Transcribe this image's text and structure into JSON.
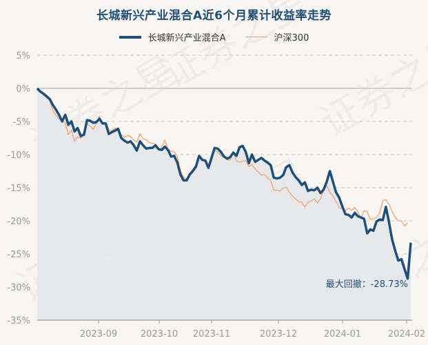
{
  "chart_data": {
    "type": "line",
    "title": "长城新兴产业混合A近6个月累计收益率走势",
    "xlabel": "",
    "ylabel": "",
    "ylim": [
      -35,
      5
    ],
    "yticks": [
      "5%",
      "0%",
      "-5%",
      "-10%",
      "-15%",
      "-20%",
      "-25%",
      "-30%",
      "-35%"
    ],
    "ytick_values": [
      5,
      0,
      -5,
      -10,
      -15,
      -20,
      -25,
      -30,
      -35
    ],
    "xticks": [
      "2023-09",
      "2023-10",
      "2023-11",
      "2023-12",
      "2024-01",
      "2024-02"
    ],
    "grid": true,
    "legend_position": "top",
    "annotation": "最大回撤：-28.73%",
    "series": [
      {
        "name": "长城新兴产业混合A",
        "color": "#1f4e79",
        "values": [
          0.0,
          -0.5,
          -0.8,
          -1.2,
          -1.6,
          -2.5,
          -3.2,
          -4.0,
          -5.0,
          -4.0,
          -5.5,
          -5.0,
          -6.5,
          -6.0,
          -7.2,
          -7.0,
          -4.8,
          -4.9,
          -5.2,
          -5.1,
          -4.6,
          -5.3,
          -5.3,
          -6.9,
          -6.6,
          -6.4,
          -6.1,
          -7.5,
          -7.9,
          -8.2,
          -8.0,
          -8.6,
          -9.4,
          -8.0,
          -8.6,
          -9.1,
          -9.0,
          -9.0,
          -8.6,
          -9.2,
          -9.3,
          -8.8,
          -9.3,
          -10.3,
          -10.2,
          -11.2,
          -13.0,
          -13.9,
          -13.9,
          -13.0,
          -12.5,
          -11.8,
          -10.2,
          -10.8,
          -10.9,
          -12.0,
          -10.5,
          -9.0,
          -9.1,
          -9.6,
          -10.3,
          -10.6,
          -10.4,
          -9.7,
          -10.2,
          -8.9,
          -8.7,
          -9.6,
          -11.3,
          -10.0,
          -11.1,
          -10.8,
          -10.5,
          -10.9,
          -11.2,
          -11.6,
          -13.5,
          -13.6,
          -13.5,
          -13.1,
          -11.9,
          -11.6,
          -12.7,
          -13.4,
          -13.9,
          -14.6,
          -14.2,
          -15.5,
          -15.3,
          -15.4,
          -15.0,
          -15.8,
          -15.3,
          -14.1,
          -12.5,
          -14.1,
          -15.7,
          -16.5,
          -17.8,
          -19.0,
          -19.1,
          -19.5,
          -18.8,
          -19.3,
          -19.5,
          -19.7,
          -21.9,
          -21.3,
          -21.5,
          -20.1,
          -19.8,
          -19.9,
          -17.9,
          -20.2,
          -22.8,
          -24.5,
          -26.0,
          -25.8,
          -27.3,
          -28.73,
          -23.3
        ]
      },
      {
        "name": "沪深300",
        "color": "#f0a46a",
        "values": [
          0.0,
          -0.6,
          -1.0,
          -1.4,
          -1.9,
          -3.3,
          -4.1,
          -4.6,
          -4.8,
          -5.3,
          -7.0,
          -6.3,
          -8.0,
          -7.3,
          -7.5,
          -7.0,
          -5.4,
          -5.7,
          -6.2,
          -5.3,
          -4.2,
          -5.2,
          -5.2,
          -6.3,
          -6.4,
          -6.0,
          -6.5,
          -7.0,
          -7.4,
          -7.1,
          -7.3,
          -7.8,
          -8.1,
          -6.9,
          -7.6,
          -7.8,
          -8.2,
          -8.3,
          -8.4,
          -9.2,
          -8.9,
          -7.8,
          -9.2,
          -9.5,
          -9.6,
          -10.3,
          -12.5,
          -13.4,
          -13.7,
          -12.8,
          -12.2,
          -11.6,
          -10.5,
          -10.6,
          -11.1,
          -11.8,
          -10.4,
          -9.4,
          -9.6,
          -10.2,
          -10.4,
          -10.8,
          -10.8,
          -9.7,
          -11.0,
          -11.1,
          -11.0,
          -10.9,
          -11.8,
          -11.5,
          -12.2,
          -12.6,
          -13.1,
          -13.0,
          -13.5,
          -13.9,
          -15.4,
          -15.4,
          -15.5,
          -15.1,
          -14.9,
          -15.7,
          -16.3,
          -16.7,
          -17.1,
          -17.2,
          -17.9,
          -17.2,
          -17.0,
          -16.7,
          -17.3,
          -16.7,
          -15.4,
          -14.7,
          -15.7,
          -16.2,
          -17.1,
          -18.0,
          -18.2,
          -18.5,
          -18.1,
          -18.4,
          -18.0,
          -18.6,
          -19.6,
          -18.5,
          -18.6,
          -19.8,
          -19.7,
          -19.5,
          -18.9,
          -17.0,
          -16.8,
          -17.5,
          -18.6,
          -19.5,
          -20.0,
          -20.0,
          -20.8,
          -20.3
        ]
      }
    ]
  },
  "legend": {
    "items": [
      {
        "label": "长城新兴产业混合A",
        "color": "#1f4e79"
      },
      {
        "label": "沪深300",
        "color": "#f0a46a"
      }
    ]
  },
  "watermark": "证券之星",
  "colors": {
    "background": "#f8f6f2",
    "area_fill": "#e3e7ea",
    "grid": "#d3d3d3",
    "title": "#1f4e79"
  }
}
